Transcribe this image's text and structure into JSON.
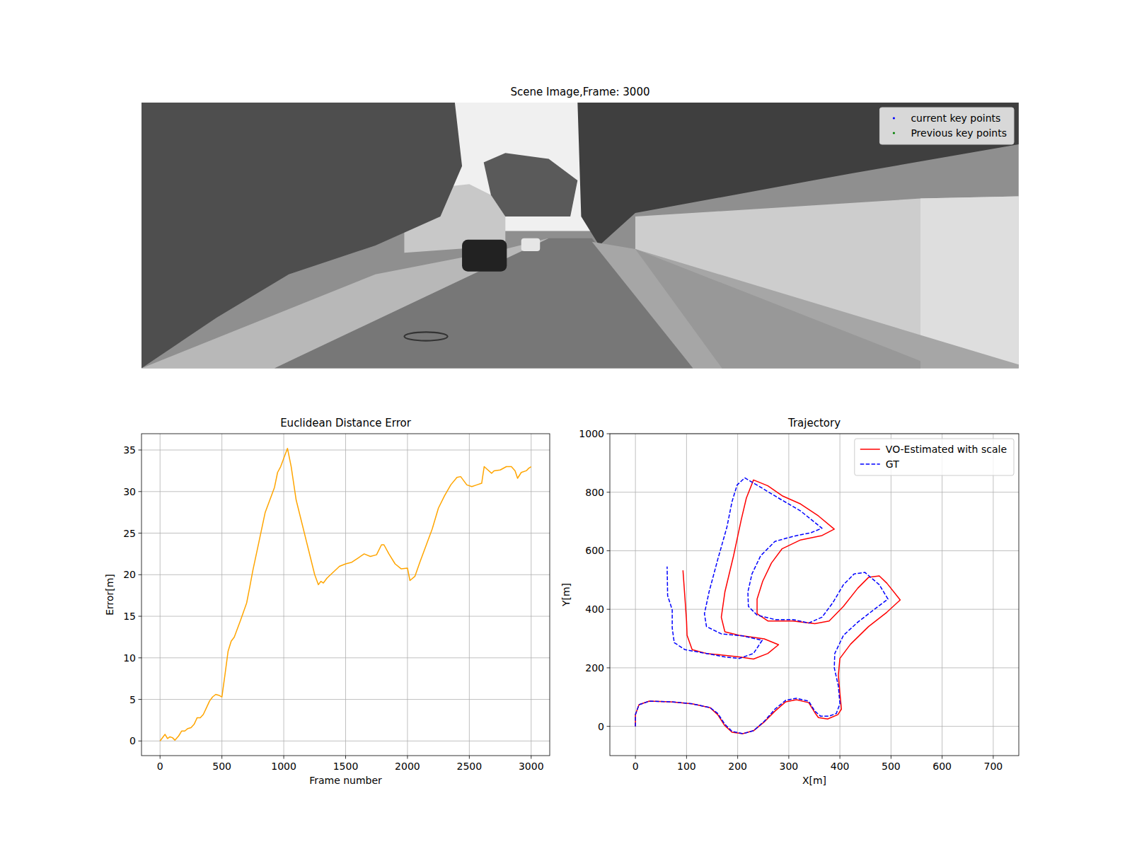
{
  "chart_data": [
    {
      "type": "image",
      "title": "Scene Image,Frame: 3000",
      "legend": "upper right",
      "series": [
        {
          "name": "current key points",
          "color": "blue",
          "marker": "point"
        },
        {
          "name": "Previous key points",
          "color": "green",
          "marker": "point"
        }
      ]
    },
    {
      "type": "line",
      "title": "Euclidean Distance Error",
      "x_label": "Frame number",
      "y_label": "Error[m]",
      "grid": true,
      "xlim": [
        -150,
        3150
      ],
      "ylim": [
        -1.76,
        36.96
      ],
      "xticks": [
        0,
        500,
        1000,
        1500,
        2000,
        2500,
        3000
      ],
      "yticks": [
        0,
        5,
        10,
        15,
        20,
        25,
        30,
        35
      ],
      "x": [
        0,
        25,
        40,
        60,
        80,
        100,
        120,
        150,
        175,
        200,
        225,
        250,
        275,
        300,
        325,
        350,
        375,
        400,
        425,
        450,
        475,
        500,
        525,
        550,
        575,
        600,
        650,
        700,
        725,
        750,
        800,
        850,
        900,
        925,
        950,
        975,
        1000,
        1030,
        1060,
        1100,
        1150,
        1200,
        1250,
        1280,
        1300,
        1320,
        1350,
        1400,
        1450,
        1500,
        1550,
        1600,
        1650,
        1700,
        1750,
        1790,
        1810,
        1850,
        1900,
        1950,
        2000,
        2020,
        2060,
        2100,
        2150,
        2200,
        2250,
        2300,
        2350,
        2400,
        2430,
        2480,
        2520,
        2560,
        2600,
        2620,
        2650,
        2680,
        2700,
        2750,
        2800,
        2840,
        2870,
        2890,
        2920,
        2960,
        2980,
        3000
      ],
      "series": [
        {
          "color": "orange",
          "line_style": "solid",
          "values": [
            0,
            0.5,
            0.8,
            0.3,
            0.5,
            0.4,
            0.1,
            0.6,
            1.2,
            1.2,
            1.5,
            1.6,
            2.0,
            2.8,
            2.8,
            3.2,
            4.0,
            4.8,
            5.3,
            5.6,
            5.5,
            5.3,
            8,
            10.8,
            12,
            12.5,
            14.5,
            16.6,
            18.5,
            20.5,
            24,
            27.5,
            29.5,
            30.5,
            32.3,
            33,
            34,
            35.2,
            33,
            29,
            26,
            23,
            20,
            18.8,
            19.2,
            19.0,
            19.6,
            20.3,
            21,
            21.3,
            21.5,
            22,
            22.5,
            22.2,
            22.4,
            23.6,
            23.6,
            22.5,
            21.3,
            20.7,
            20.8,
            19.3,
            19.8,
            21.5,
            23.5,
            25.5,
            28,
            29.5,
            30.8,
            31.7,
            31.8,
            30.8,
            30.6,
            30.8,
            31,
            33,
            32.6,
            32.2,
            32.5,
            32.6,
            33.0,
            33.0,
            32.5,
            31.6,
            32.3,
            32.5,
            32.8,
            33
          ]
        }
      ]
    },
    {
      "type": "line",
      "title": "Trajectory",
      "x_label": "X[m]",
      "y_label": "Y[m]",
      "grid": true,
      "legend": "upper right",
      "xlim": [
        -50,
        750
      ],
      "ylim": [
        -100,
        1000
      ],
      "xticks": [
        0,
        100,
        200,
        300,
        400,
        500,
        600,
        700
      ],
      "yticks": [
        0,
        200,
        400,
        600,
        800,
        1000
      ],
      "series": [
        {
          "name": "VO-Estimated with scale",
          "color": "red",
          "line_style": "solid",
          "x": [
            0,
            0,
            7,
            27,
            69,
            111,
            146,
            161,
            175,
            189,
            210,
            231,
            252,
            273,
            294,
            315,
            339,
            351,
            358,
            376,
            396,
            403,
            400,
            397,
            400,
            421,
            456,
            492,
            518,
            492,
            477,
            456,
            435,
            407,
            379,
            351,
            308,
            259,
            238,
            238,
            249,
            266,
            287,
            323,
            365,
            389,
            358,
            323,
            287,
            259,
            231,
            217,
            207,
            192,
            175,
            168,
            175,
            203,
            252,
            280,
            259,
            231,
            203,
            168,
            139,
            111,
            101,
            100,
            97,
            93
          ],
          "values": [
            0,
            40,
            74,
            86,
            84,
            77,
            64,
            40,
            2,
            -20,
            -25,
            -15,
            15,
            52,
            84,
            91,
            81,
            47,
            30,
            25,
            40,
            59,
            114,
            175,
            232,
            281,
            341,
            390,
            432,
            489,
            514,
            509,
            472,
            410,
            360,
            351,
            360,
            360,
            385,
            435,
            496,
            558,
            607,
            637,
            652,
            674,
            719,
            760,
            788,
            822,
            842,
            780,
            706,
            583,
            459,
            373,
            323,
            311,
            299,
            279,
            249,
            230,
            237,
            244,
            249,
            262,
            311,
            360,
            435,
            533
          ]
        },
        {
          "name": "GT",
          "color": "blue",
          "line_style": "dashed",
          "x": [
            0,
            0,
            7,
            27,
            69,
            111,
            146,
            161,
            175,
            189,
            210,
            231,
            252,
            273,
            294,
            315,
            339,
            351,
            362,
            379,
            393,
            400,
            397,
            389,
            390,
            407,
            435,
            466,
            494,
            477,
            449,
            428,
            407,
            386,
            365,
            339,
            308,
            273,
            238,
            221,
            220,
            228,
            245,
            273,
            308,
            344,
            365,
            323,
            280,
            245,
            214,
            199,
            189,
            179,
            161,
            144,
            135,
            139,
            168,
            210,
            248,
            231,
            203,
            175,
            139,
            97,
            76,
            72,
            72,
            63,
            62
          ],
          "values": [
            0,
            40,
            74,
            86,
            84,
            77,
            64,
            44,
            7,
            -17,
            -25,
            -15,
            17,
            59,
            89,
            96,
            86,
            52,
            35,
            35,
            44,
            77,
            138,
            200,
            249,
            311,
            356,
            398,
            435,
            484,
            526,
            521,
            484,
            422,
            373,
            353,
            365,
            365,
            380,
            410,
            459,
            521,
            583,
            632,
            649,
            662,
            677,
            736,
            780,
            817,
            849,
            825,
            768,
            681,
            570,
            459,
            385,
            341,
            316,
            309,
            294,
            249,
            232,
            237,
            249,
            262,
            286,
            336,
            398,
            447,
            546
          ]
        }
      ]
    }
  ]
}
